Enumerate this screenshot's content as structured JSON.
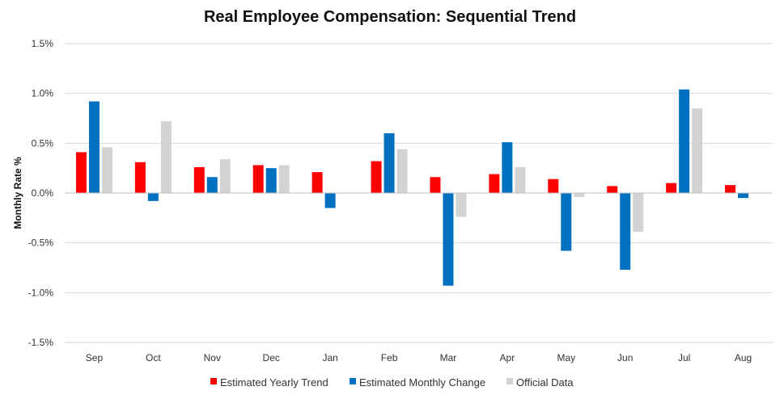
{
  "chart_data": {
    "type": "bar",
    "title": "Real Employee Compensation: Sequential Trend",
    "ylabel": "Monthly Rate %",
    "xlabel": "",
    "ylim": [
      -1.5,
      1.5
    ],
    "yticks": [
      "1.5%",
      "1.0%",
      "0.5%",
      "0.0%",
      "-0.5%",
      "-1.0%",
      "-1.5%"
    ],
    "ytick_values": [
      1.5,
      1.0,
      0.5,
      0.0,
      -0.5,
      -1.0,
      -1.5
    ],
    "grid": true,
    "legend_position": "bottom",
    "categories": [
      "Sep",
      "Oct",
      "Nov",
      "Dec",
      "Jan",
      "Feb",
      "Mar",
      "Apr",
      "May",
      "Jun",
      "Jul",
      "Aug"
    ],
    "series": [
      {
        "name": "Estimated Yearly Trend",
        "color": "#ff0000",
        "values": [
          0.41,
          0.31,
          0.26,
          0.28,
          0.21,
          0.32,
          0.16,
          0.19,
          0.14,
          0.07,
          0.1,
          0.08
        ]
      },
      {
        "name": "Estimated Monthly Change",
        "color": "#0070c0",
        "values": [
          0.92,
          -0.08,
          0.16,
          0.25,
          -0.15,
          0.6,
          -0.93,
          0.51,
          -0.58,
          -0.77,
          1.04,
          -0.05
        ]
      },
      {
        "name": "Official Data",
        "color": "#d3d3d3",
        "values": [
          0.46,
          0.72,
          0.34,
          0.28,
          0.0,
          0.44,
          -0.24,
          0.26,
          -0.04,
          -0.39,
          0.85,
          null
        ]
      }
    ]
  }
}
